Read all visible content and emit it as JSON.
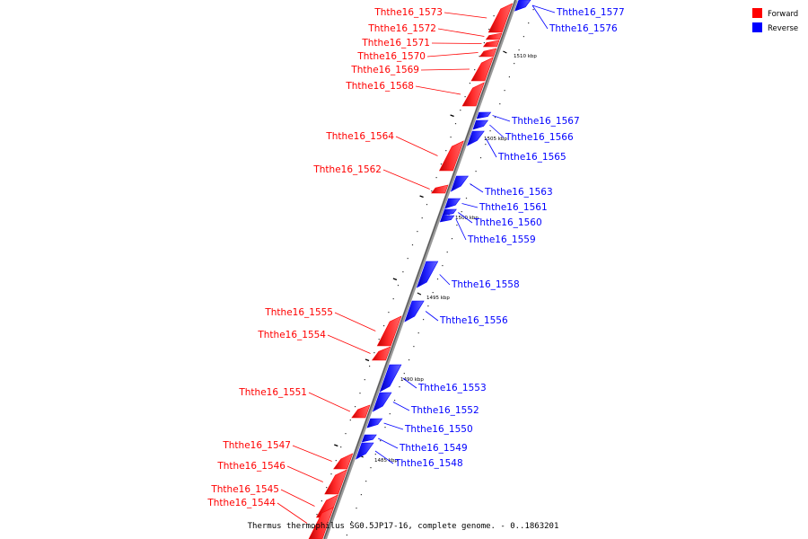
{
  "caption": "Thermus thermophilus SG0.5JP17-16, complete genome. - 0..1863201",
  "legend": [
    {
      "label": "Forward",
      "color": "#ff0000"
    },
    {
      "label": "Reverse",
      "color": "#0000ff"
    }
  ],
  "colors": {
    "forward": "#ff0000",
    "reverse": "#0000ff",
    "backbone": "#888888"
  },
  "tick_labels": [
    "1510 kbp",
    "1505 kbp",
    "1500 kbp",
    "1495 kbp",
    "1490 kbp",
    "1485 kbp"
  ],
  "genes": [
    {
      "name": "Ththe16_1577",
      "strand": "reverse"
    },
    {
      "name": "Ththe16_1576",
      "strand": "reverse"
    },
    {
      "name": "Ththe16_1573",
      "strand": "forward"
    },
    {
      "name": "Ththe16_1572",
      "strand": "forward"
    },
    {
      "name": "Ththe16_1571",
      "strand": "forward"
    },
    {
      "name": "Ththe16_1570",
      "strand": "forward"
    },
    {
      "name": "Ththe16_1569",
      "strand": "forward"
    },
    {
      "name": "Ththe16_1568",
      "strand": "forward"
    },
    {
      "name": "Ththe16_1567",
      "strand": "reverse"
    },
    {
      "name": "Ththe16_1566",
      "strand": "reverse"
    },
    {
      "name": "Ththe16_1565",
      "strand": "reverse"
    },
    {
      "name": "Ththe16_1564",
      "strand": "forward"
    },
    {
      "name": "Ththe16_1562",
      "strand": "forward"
    },
    {
      "name": "Ththe16_1563",
      "strand": "reverse"
    },
    {
      "name": "Ththe16_1561",
      "strand": "reverse"
    },
    {
      "name": "Ththe16_1560",
      "strand": "reverse"
    },
    {
      "name": "Ththe16_1559",
      "strand": "reverse"
    },
    {
      "name": "Ththe16_1558",
      "strand": "reverse"
    },
    {
      "name": "Ththe16_1556",
      "strand": "reverse"
    },
    {
      "name": "Ththe16_1555",
      "strand": "forward"
    },
    {
      "name": "Ththe16_1554",
      "strand": "forward"
    },
    {
      "name": "Ththe16_1553",
      "strand": "reverse"
    },
    {
      "name": "Ththe16_1552",
      "strand": "reverse"
    },
    {
      "name": "Ththe16_1551",
      "strand": "forward"
    },
    {
      "name": "Ththe16_1550",
      "strand": "reverse"
    },
    {
      "name": "Ththe16_1549",
      "strand": "reverse"
    },
    {
      "name": "Ththe16_1548",
      "strand": "reverse"
    },
    {
      "name": "Ththe16_1547",
      "strand": "forward"
    },
    {
      "name": "Ththe16_1546",
      "strand": "forward"
    },
    {
      "name": "Ththe16_1545",
      "strand": "forward"
    },
    {
      "name": "Ththe16_1544",
      "strand": "forward"
    }
  ]
}
